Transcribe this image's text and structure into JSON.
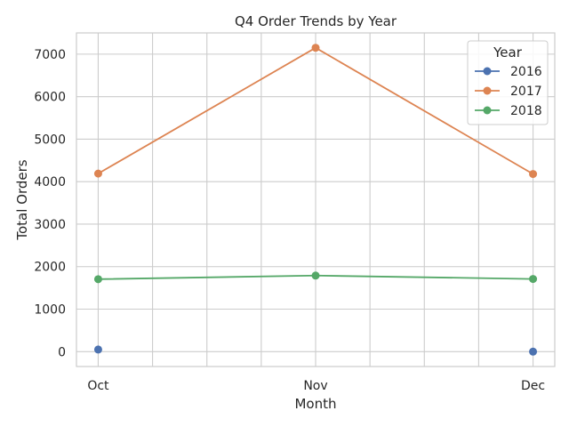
{
  "chart_data": {
    "type": "line",
    "title": "Q4 Order Trends by Year",
    "xlabel": "Month",
    "ylabel": "Total Orders",
    "x_numeric": [
      10,
      11,
      12
    ],
    "categories": [
      "Oct",
      "Nov",
      "Dec"
    ],
    "xlim": [
      9.9,
      12.1
    ],
    "ylim": [
      -350,
      7500
    ],
    "yticks": [
      0,
      1000,
      2000,
      3000,
      4000,
      5000,
      6000,
      7000
    ],
    "grid": true,
    "legend": {
      "title": "Year",
      "location": "top-right"
    },
    "series": [
      {
        "name": "2016",
        "color": "#4c72b0",
        "values": [
          50,
          null,
          0
        ]
      },
      {
        "name": "2017",
        "color": "#dd8452",
        "values": [
          4190,
          7150,
          4180
        ]
      },
      {
        "name": "2018",
        "color": "#55a868",
        "values": [
          1705,
          1790,
          1710
        ]
      }
    ]
  }
}
